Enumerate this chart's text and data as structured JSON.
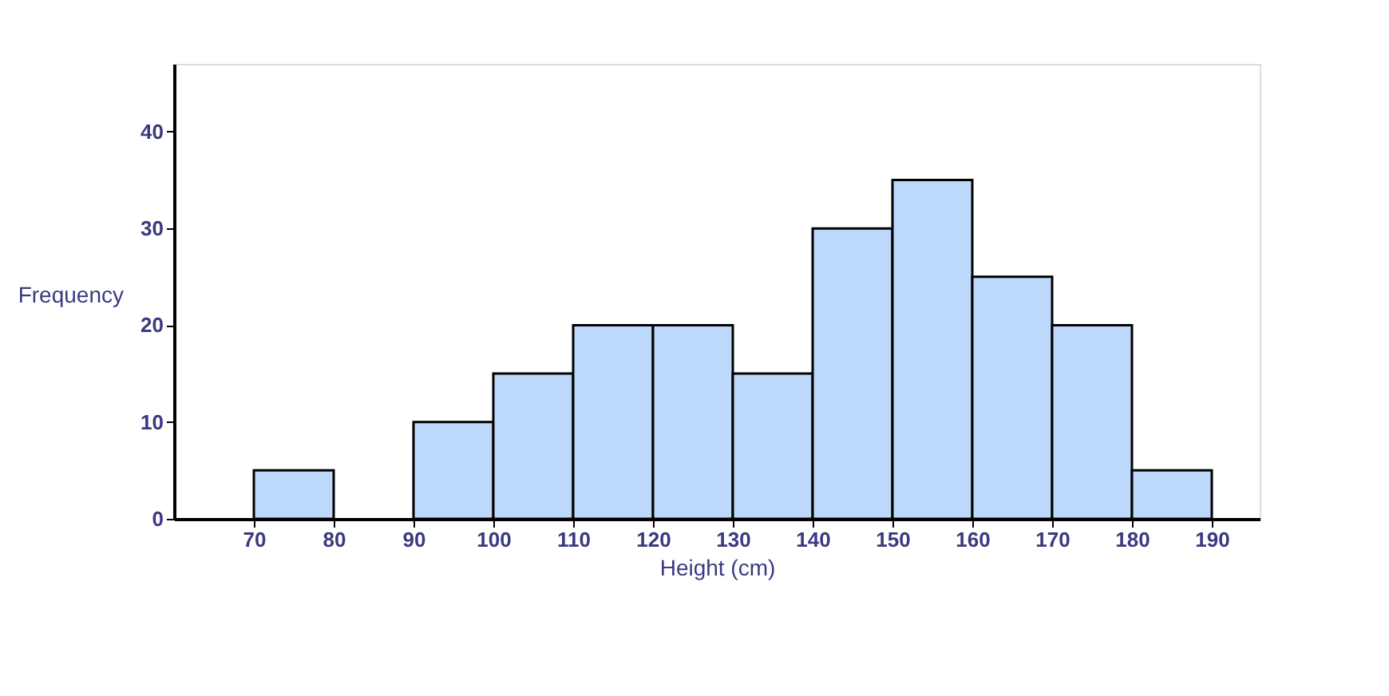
{
  "chart_data": {
    "type": "histogram",
    "xlabel": "Height (cm)",
    "ylabel": "Frequency",
    "bins": [
      70,
      80,
      90,
      100,
      110,
      120,
      130,
      140,
      150,
      160,
      170,
      180,
      190
    ],
    "values": [
      5,
      0,
      10,
      15,
      20,
      20,
      15,
      30,
      35,
      25,
      20,
      5
    ],
    "color": "#bcd9fb",
    "xlim": [
      60,
      196
    ],
    "xticks": [
      70,
      80,
      90,
      100,
      110,
      120,
      130,
      140,
      150,
      160,
      170,
      180,
      190
    ],
    "ylim": [
      0,
      47
    ],
    "yticks": [
      0,
      10,
      20,
      30,
      40
    ]
  }
}
